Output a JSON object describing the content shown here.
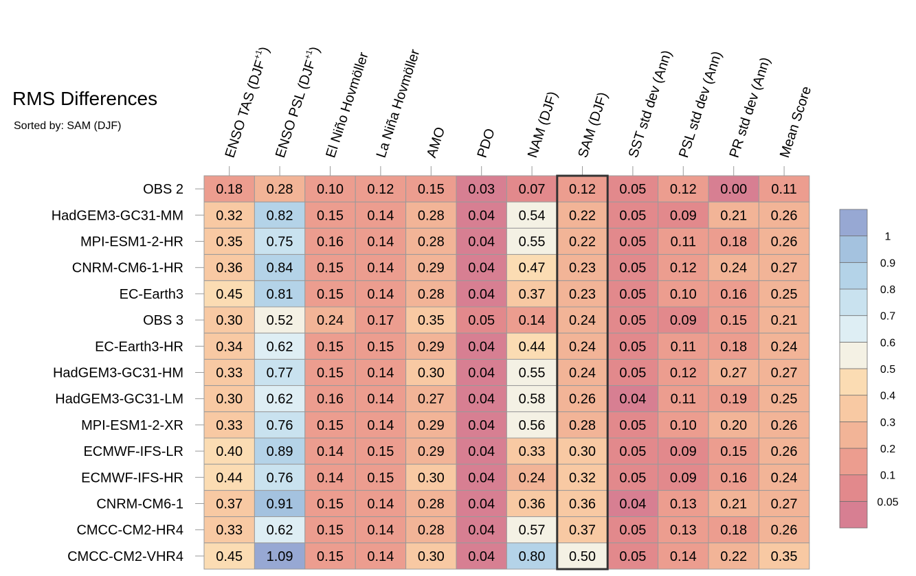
{
  "chart_data": {
    "type": "heatmap",
    "title": "RMS Differences",
    "subtitle": "Sorted by: SAM (DJF)",
    "columns": [
      {
        "label": "ENSO TAS (DJF",
        "sup": "+1",
        "tail": ")"
      },
      {
        "label": "ENSO PSL (DJF",
        "sup": "+1",
        "tail": ")"
      },
      {
        "label": "El Niño Hovmöller",
        "sup": "",
        "tail": ""
      },
      {
        "label": "La Niña Hovmöller",
        "sup": "",
        "tail": ""
      },
      {
        "label": "AMO",
        "sup": "",
        "tail": ""
      },
      {
        "label": "PDO",
        "sup": "",
        "tail": ""
      },
      {
        "label": "NAM (DJF)",
        "sup": "",
        "tail": ""
      },
      {
        "label": "SAM (DJF)",
        "sup": "",
        "tail": ""
      },
      {
        "label": "SST std dev (Ann)",
        "sup": "",
        "tail": ""
      },
      {
        "label": "PSL std dev (Ann)",
        "sup": "",
        "tail": ""
      },
      {
        "label": "PR std dev (Ann)",
        "sup": "",
        "tail": ""
      },
      {
        "label": "Mean Score",
        "sup": "",
        "tail": ""
      }
    ],
    "highlighted_column": 7,
    "rows": [
      {
        "name": "OBS 2",
        "values": [
          0.18,
          0.28,
          0.1,
          0.12,
          0.15,
          0.03,
          0.07,
          0.12,
          0.05,
          0.12,
          0.0,
          0.11
        ]
      },
      {
        "name": "HadGEM3-GC31-MM",
        "values": [
          0.32,
          0.82,
          0.15,
          0.14,
          0.28,
          0.04,
          0.54,
          0.22,
          0.05,
          0.09,
          0.21,
          0.26
        ]
      },
      {
        "name": "MPI-ESM1-2-HR",
        "values": [
          0.35,
          0.75,
          0.16,
          0.14,
          0.28,
          0.04,
          0.55,
          0.22,
          0.05,
          0.11,
          0.18,
          0.26
        ]
      },
      {
        "name": "CNRM-CM6-1-HR",
        "values": [
          0.36,
          0.84,
          0.15,
          0.14,
          0.29,
          0.04,
          0.47,
          0.23,
          0.05,
          0.12,
          0.24,
          0.27
        ]
      },
      {
        "name": "EC-Earth3",
        "values": [
          0.45,
          0.81,
          0.15,
          0.14,
          0.28,
          0.04,
          0.37,
          0.23,
          0.05,
          0.1,
          0.16,
          0.25
        ]
      },
      {
        "name": "OBS 3",
        "values": [
          0.3,
          0.52,
          0.24,
          0.17,
          0.35,
          0.05,
          0.14,
          0.24,
          0.05,
          0.09,
          0.15,
          0.21
        ]
      },
      {
        "name": "EC-Earth3-HR",
        "values": [
          0.34,
          0.62,
          0.15,
          0.15,
          0.29,
          0.04,
          0.44,
          0.24,
          0.05,
          0.11,
          0.18,
          0.24
        ]
      },
      {
        "name": "HadGEM3-GC31-HM",
        "values": [
          0.33,
          0.77,
          0.15,
          0.14,
          0.3,
          0.04,
          0.55,
          0.24,
          0.05,
          0.12,
          0.27,
          0.27
        ]
      },
      {
        "name": "HadGEM3-GC31-LM",
        "values": [
          0.3,
          0.62,
          0.16,
          0.14,
          0.27,
          0.04,
          0.58,
          0.26,
          0.04,
          0.11,
          0.19,
          0.25
        ]
      },
      {
        "name": "MPI-ESM1-2-XR",
        "values": [
          0.33,
          0.76,
          0.15,
          0.14,
          0.29,
          0.04,
          0.56,
          0.28,
          0.05,
          0.1,
          0.2,
          0.26
        ]
      },
      {
        "name": "ECMWF-IFS-LR",
        "values": [
          0.4,
          0.89,
          0.14,
          0.15,
          0.29,
          0.04,
          0.33,
          0.3,
          0.05,
          0.09,
          0.15,
          0.26
        ]
      },
      {
        "name": "ECMWF-IFS-HR",
        "values": [
          0.44,
          0.76,
          0.14,
          0.15,
          0.3,
          0.04,
          0.24,
          0.32,
          0.05,
          0.09,
          0.16,
          0.24
        ]
      },
      {
        "name": "CNRM-CM6-1",
        "values": [
          0.37,
          0.91,
          0.15,
          0.14,
          0.28,
          0.04,
          0.36,
          0.36,
          0.04,
          0.13,
          0.21,
          0.27
        ]
      },
      {
        "name": "CMCC-CM2-HR4",
        "values": [
          0.33,
          0.62,
          0.15,
          0.14,
          0.28,
          0.04,
          0.57,
          0.37,
          0.05,
          0.13,
          0.18,
          0.26
        ]
      },
      {
        "name": "CMCC-CM2-VHR4",
        "values": [
          0.45,
          1.09,
          0.15,
          0.14,
          0.3,
          0.04,
          0.8,
          0.5,
          0.05,
          0.14,
          0.22,
          0.35
        ]
      }
    ],
    "colorbar": {
      "levels": [
        0.05,
        0.1,
        0.2,
        0.3,
        0.4,
        0.5,
        0.6,
        0.7,
        0.8,
        0.9,
        1
      ],
      "labels": [
        "0.05",
        "0.1",
        "0.2",
        "0.3",
        "0.4",
        "0.5",
        "0.6",
        "0.7",
        "0.8",
        "0.9",
        "1"
      ],
      "colors": [
        "#d77f92",
        "#e2898c",
        "#ec9d8f",
        "#f2b497",
        "#f8c9a3",
        "#fbdcb3",
        "#f4f1e4",
        "#deeef4",
        "#c9e2ef",
        "#b4d3e8",
        "#a4c2df",
        "#97a8d3"
      ]
    },
    "grid_color": "#9a9a9a",
    "highlight_color": "#333333"
  }
}
